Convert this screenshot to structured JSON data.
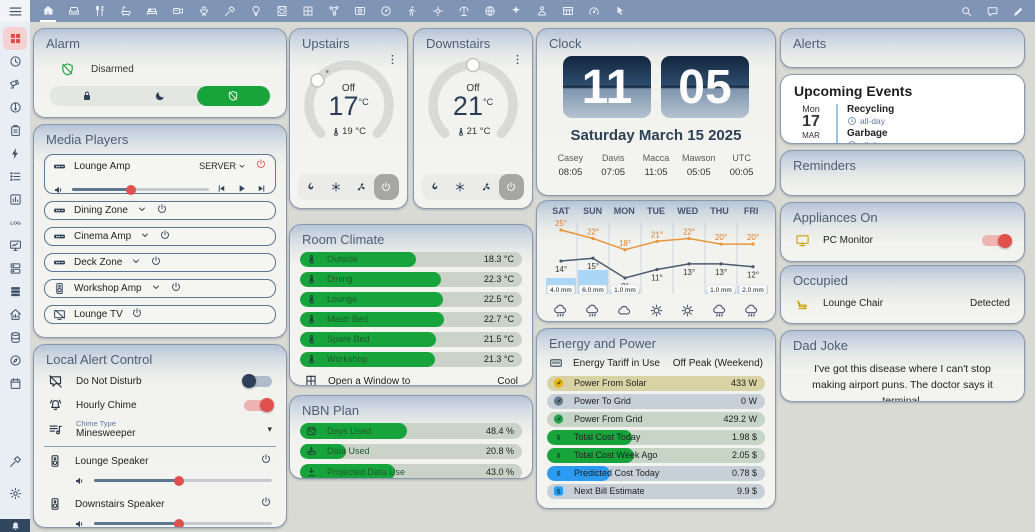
{
  "topbar": {
    "tabs": [
      {
        "icon": "home-assistant",
        "active": true
      },
      {
        "icon": "sofa"
      },
      {
        "icon": "silverware"
      },
      {
        "icon": "bathtub"
      },
      {
        "icon": "bed"
      },
      {
        "icon": "projector"
      },
      {
        "icon": "grill"
      },
      {
        "icon": "hammer-wrench"
      },
      {
        "icon": "lightbulb"
      },
      {
        "icon": "washing-machine"
      },
      {
        "icon": "window-grid"
      },
      {
        "icon": "molecule"
      },
      {
        "icon": "disc-player"
      },
      {
        "icon": "gauge"
      },
      {
        "icon": "walk"
      },
      {
        "icon": "location-enter"
      },
      {
        "icon": "beach"
      },
      {
        "icon": "earth"
      },
      {
        "icon": "dart"
      },
      {
        "icon": "account"
      },
      {
        "icon": "table"
      },
      {
        "icon": "speedometer"
      },
      {
        "icon": "cursor-click"
      }
    ],
    "actions": [
      {
        "icon": "search"
      },
      {
        "icon": "chat"
      },
      {
        "icon": "pencil"
      }
    ]
  },
  "sidebar": {
    "items": [
      {
        "icon": "view-grid",
        "active": true
      },
      {
        "icon": "history"
      },
      {
        "icon": "cctv"
      },
      {
        "icon": "vacuum"
      },
      {
        "icon": "clipboard-text"
      },
      {
        "icon": "flash"
      },
      {
        "icon": "format-list"
      },
      {
        "icon": "chart-box"
      },
      {
        "icon": "log-text"
      },
      {
        "icon": "monitor-dashboard"
      },
      {
        "icon": "dns"
      },
      {
        "icon": "table-rows"
      },
      {
        "icon": "home-analytics"
      },
      {
        "icon": "database"
      },
      {
        "icon": "compass"
      },
      {
        "icon": "calendar"
      }
    ],
    "bottom": [
      {
        "icon": "hammer"
      },
      {
        "icon": "cog"
      }
    ],
    "notification_icon": "bell"
  },
  "alarm": {
    "title": "Alarm",
    "state": "Disarmed",
    "modes": [
      {
        "icon": "lock"
      },
      {
        "icon": "moon"
      },
      {
        "icon": "shield-off",
        "selected": true
      }
    ]
  },
  "media_players": {
    "title": "Media Players",
    "players": [
      {
        "icon": "soundbar",
        "name": "Lounge Amp",
        "source": "SERVER",
        "expanded": true,
        "volume": 43,
        "power_red": true
      },
      {
        "icon": "soundbar",
        "name": "Dining Zone"
      },
      {
        "icon": "soundbar",
        "name": "Cinema Amp"
      },
      {
        "icon": "soundbar",
        "name": "Deck Zone"
      },
      {
        "icon": "speaker",
        "name": "Workshop Amp"
      },
      {
        "icon": "tv-off",
        "name": "Lounge TV",
        "no_source": true
      }
    ]
  },
  "alert_control": {
    "title": "Local Alert Control",
    "toggles": [
      {
        "icon": "message-off",
        "label": "Do Not Disturb",
        "on": false
      },
      {
        "icon": "bell-ring",
        "label": "Hourly Chime",
        "on": true
      }
    ],
    "select": {
      "icon": "playlist-music",
      "label": "Chime Type",
      "value": "Minesweeper"
    },
    "speakers": [
      {
        "icon": "speaker",
        "name": "Lounge Speaker",
        "volume": 48
      },
      {
        "icon": "speaker",
        "name": "Downstairs Speaker",
        "volume": 48
      }
    ]
  },
  "thermostats": [
    {
      "title": "Upstairs",
      "state": "Off",
      "target": "17",
      "unit": "°C",
      "current": "19 °C",
      "knob_deg": -52,
      "dot_deg": -33
    },
    {
      "title": "Downstairs",
      "state": "Off",
      "target": "21",
      "unit": "°C",
      "current": "21 °C",
      "knob_deg": 0
    }
  ],
  "room_climate": {
    "title": "Room Climate",
    "scale_max": 35,
    "rooms": [
      {
        "name": "Outside",
        "value": 18.3,
        "display": "18.3 °C"
      },
      {
        "name": "Dining",
        "value": 22.3,
        "display": "22.3 °C"
      },
      {
        "name": "Lounge",
        "value": 22.5,
        "display": "22.5 °C"
      },
      {
        "name": "Mastr Bed",
        "value": 22.7,
        "display": "22.7 °C"
      },
      {
        "name": "Spare Bed",
        "value": 21.5,
        "display": "21.5 °C"
      },
      {
        "name": "Workshop",
        "value": 21.3,
        "display": "21.3 °C"
      }
    ],
    "footer": {
      "icon": "window-open",
      "label": "Open a Window to",
      "value": "Cool"
    }
  },
  "nbn": {
    "title": "NBN Plan",
    "items": [
      {
        "icon": "calendar-range",
        "label": "Days Used",
        "pct": 48.4,
        "display": "48.4 %"
      },
      {
        "icon": "download-network",
        "label": "Data Used",
        "pct": 20.8,
        "display": "20.8 %"
      },
      {
        "icon": "download",
        "label": "Projected Data Use",
        "pct": 43.0,
        "display": "43.0 %"
      }
    ]
  },
  "clock": {
    "title": "Clock",
    "hours": "11",
    "minutes": "05",
    "date": "Saturday March 15 2025",
    "zones": [
      {
        "name": "Casey",
        "time": "08:05"
      },
      {
        "name": "Davis",
        "time": "07:05"
      },
      {
        "name": "Macca",
        "time": "11:05"
      },
      {
        "name": "Mawson",
        "time": "05:05"
      },
      {
        "name": "UTC",
        "time": "00:05"
      }
    ]
  },
  "forecast": {
    "days": [
      "SAT",
      "SUN",
      "MON",
      "TUE",
      "WED",
      "THU",
      "FRI"
    ],
    "high": [
      25,
      22,
      18,
      21,
      22,
      20,
      20
    ],
    "low": [
      14,
      15,
      8,
      11,
      13,
      13,
      12
    ],
    "precip_mm": [
      4.0,
      6.0,
      1.0,
      0,
      0,
      1.0,
      2.0
    ],
    "precip_labels": [
      "4.0 mm",
      "6.0 mm",
      "1.0 mm",
      "",
      "",
      "1.0 mm",
      "2.0 mm"
    ],
    "icons": [
      "pouring",
      "pouring",
      "cloudy",
      "sunny",
      "sunny",
      "pouring",
      "pouring"
    ],
    "colors": {
      "high": "#e8963c",
      "low": "#4a5b70",
      "precip": "#a9d7f5"
    }
  },
  "energy": {
    "title": "Energy and Power",
    "tariff": {
      "icon": "meter",
      "label": "Energy Tariff in Use",
      "value": "Off Peak (Weekend)"
    },
    "rows": [
      {
        "icon": "gauge-mini",
        "icon_color": "#e4b511",
        "track": "#d9d2a5",
        "pct": 0,
        "label": "Power From Solar",
        "value": "433 W"
      },
      {
        "icon": "gauge-mini",
        "icon_color": "#64788c",
        "track": "#c7d0d9",
        "pct": 0,
        "label": "Power To Grid",
        "value": "0 W"
      },
      {
        "icon": "gauge-mini",
        "icon_color": "#1fa24a",
        "track": "#c6d5c6",
        "pct": 0,
        "label": "Power From Grid",
        "value": "429.2 W"
      },
      {
        "icon": "dollar-badge",
        "icon_color": "#17a53b",
        "track": "#c6d5c6",
        "fill": "#17a53b",
        "pct": 39,
        "label": "Total Cost Today",
        "value": "1.98 $"
      },
      {
        "icon": "dollar-badge",
        "icon_color": "#17a53b",
        "track": "#c6d5c6",
        "fill": "#17a53b",
        "pct": 40,
        "label": "Total Cost Week Ago",
        "value": "2.05 $"
      },
      {
        "icon": "dollar-badge",
        "icon_color": "#2a9bf0",
        "track": "#c7d0d9",
        "fill": "#2a9bf0",
        "pct": 29,
        "label": "Predicted Cost Today",
        "value": "0.78 $"
      },
      {
        "icon": "dollar-badge",
        "icon_color": "#2a9bf0",
        "track": "#c7d0d9",
        "pct": 0,
        "label": "Next Bill Estimate",
        "value": "9.9 $"
      }
    ]
  },
  "alerts": {
    "title": "Alerts"
  },
  "events": {
    "title": "Upcoming Events",
    "date": {
      "dow": "Mon",
      "day": "17",
      "month": "MAR"
    },
    "items": [
      {
        "name": "Recycling",
        "time": "all-day"
      },
      {
        "name": "Garbage",
        "time": "all-day"
      }
    ]
  },
  "reminders": {
    "title": "Reminders"
  },
  "appliances": {
    "title": "Appliances On",
    "items": [
      {
        "icon": "monitor",
        "name": "PC Monitor",
        "on": true
      }
    ]
  },
  "occupied": {
    "title": "Occupied",
    "items": [
      {
        "icon": "lounge-chair",
        "name": "Lounge Chair",
        "state": "Detected"
      }
    ]
  },
  "dad_joke": {
    "title": "Dad Joke",
    "text": "I've got this disease where I can't stop making airport puns. The doctor says it terminal."
  },
  "colors": {
    "accent_green": "#17a53b",
    "accent_red": "#e0514e",
    "navy": "#2f4258",
    "topbar": "#8095b6"
  }
}
